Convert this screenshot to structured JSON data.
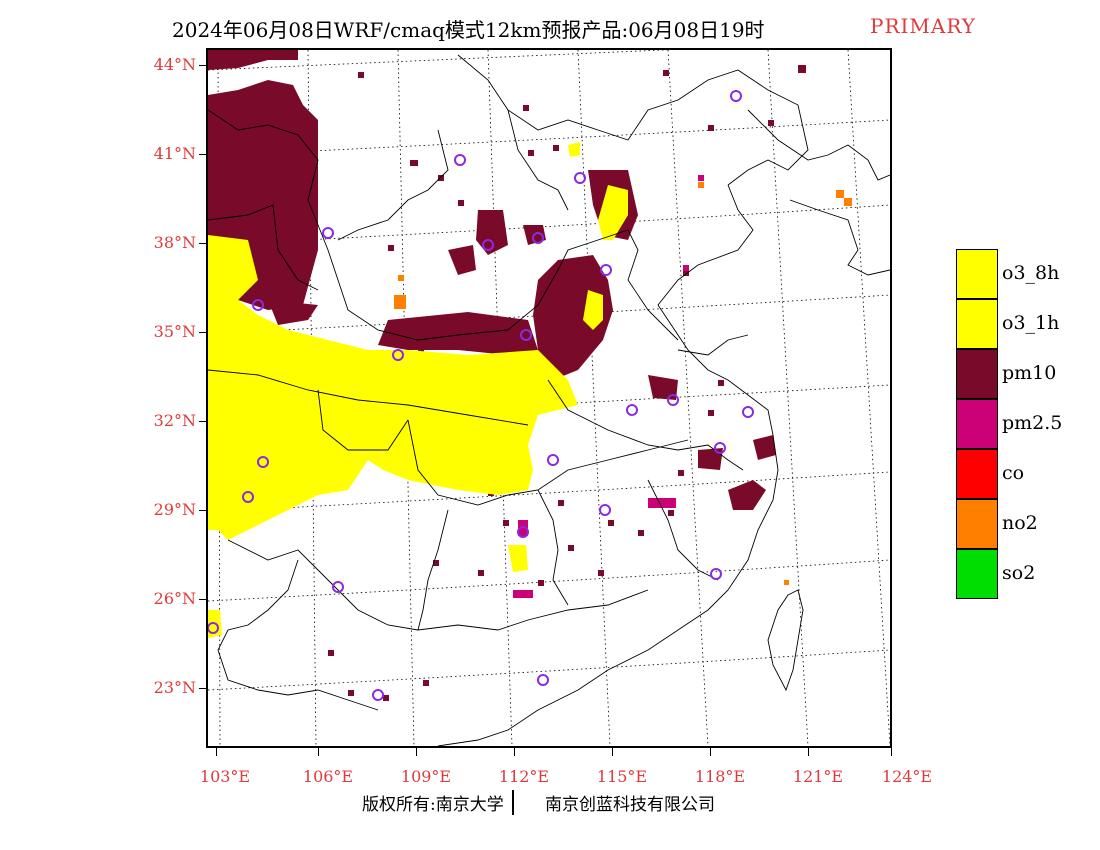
{
  "header": {
    "title": "2024年06月08日WRF/cmaq模式12km预报产品:06月08日19时",
    "product": "PRIMARY"
  },
  "axes": {
    "lat_labels": [
      "44°N",
      "41°N",
      "38°N",
      "35°N",
      "32°N",
      "29°N",
      "26°N",
      "23°N"
    ],
    "lon_labels": [
      "103°E",
      "106°E",
      "109°E",
      "112°E",
      "115°E",
      "118°E",
      "121°E",
      "124°E"
    ]
  },
  "legend": {
    "items": [
      {
        "label": "o3_8h",
        "color": "#ffff00"
      },
      {
        "label": "o3_1h",
        "color": "#ffff00"
      },
      {
        "label": "pm10",
        "color": "#7a0a2a"
      },
      {
        "label": "pm2.5",
        "color": "#cc0077"
      },
      {
        "label": "co",
        "color": "#ff0000"
      },
      {
        "label": "no2",
        "color": "#ff7f00"
      },
      {
        "label": "so2",
        "color": "#00dd00"
      }
    ]
  },
  "footer": {
    "copyright": "版权所有:南京大学",
    "company": "南京创蓝科技有限公司"
  },
  "colors": {
    "o3": "#ffff00",
    "pm10": "#7a0a2a",
    "pm25": "#cc0077",
    "no2": "#ff7f00",
    "station": "#8a2be2",
    "label_red": "#e03a3a"
  }
}
